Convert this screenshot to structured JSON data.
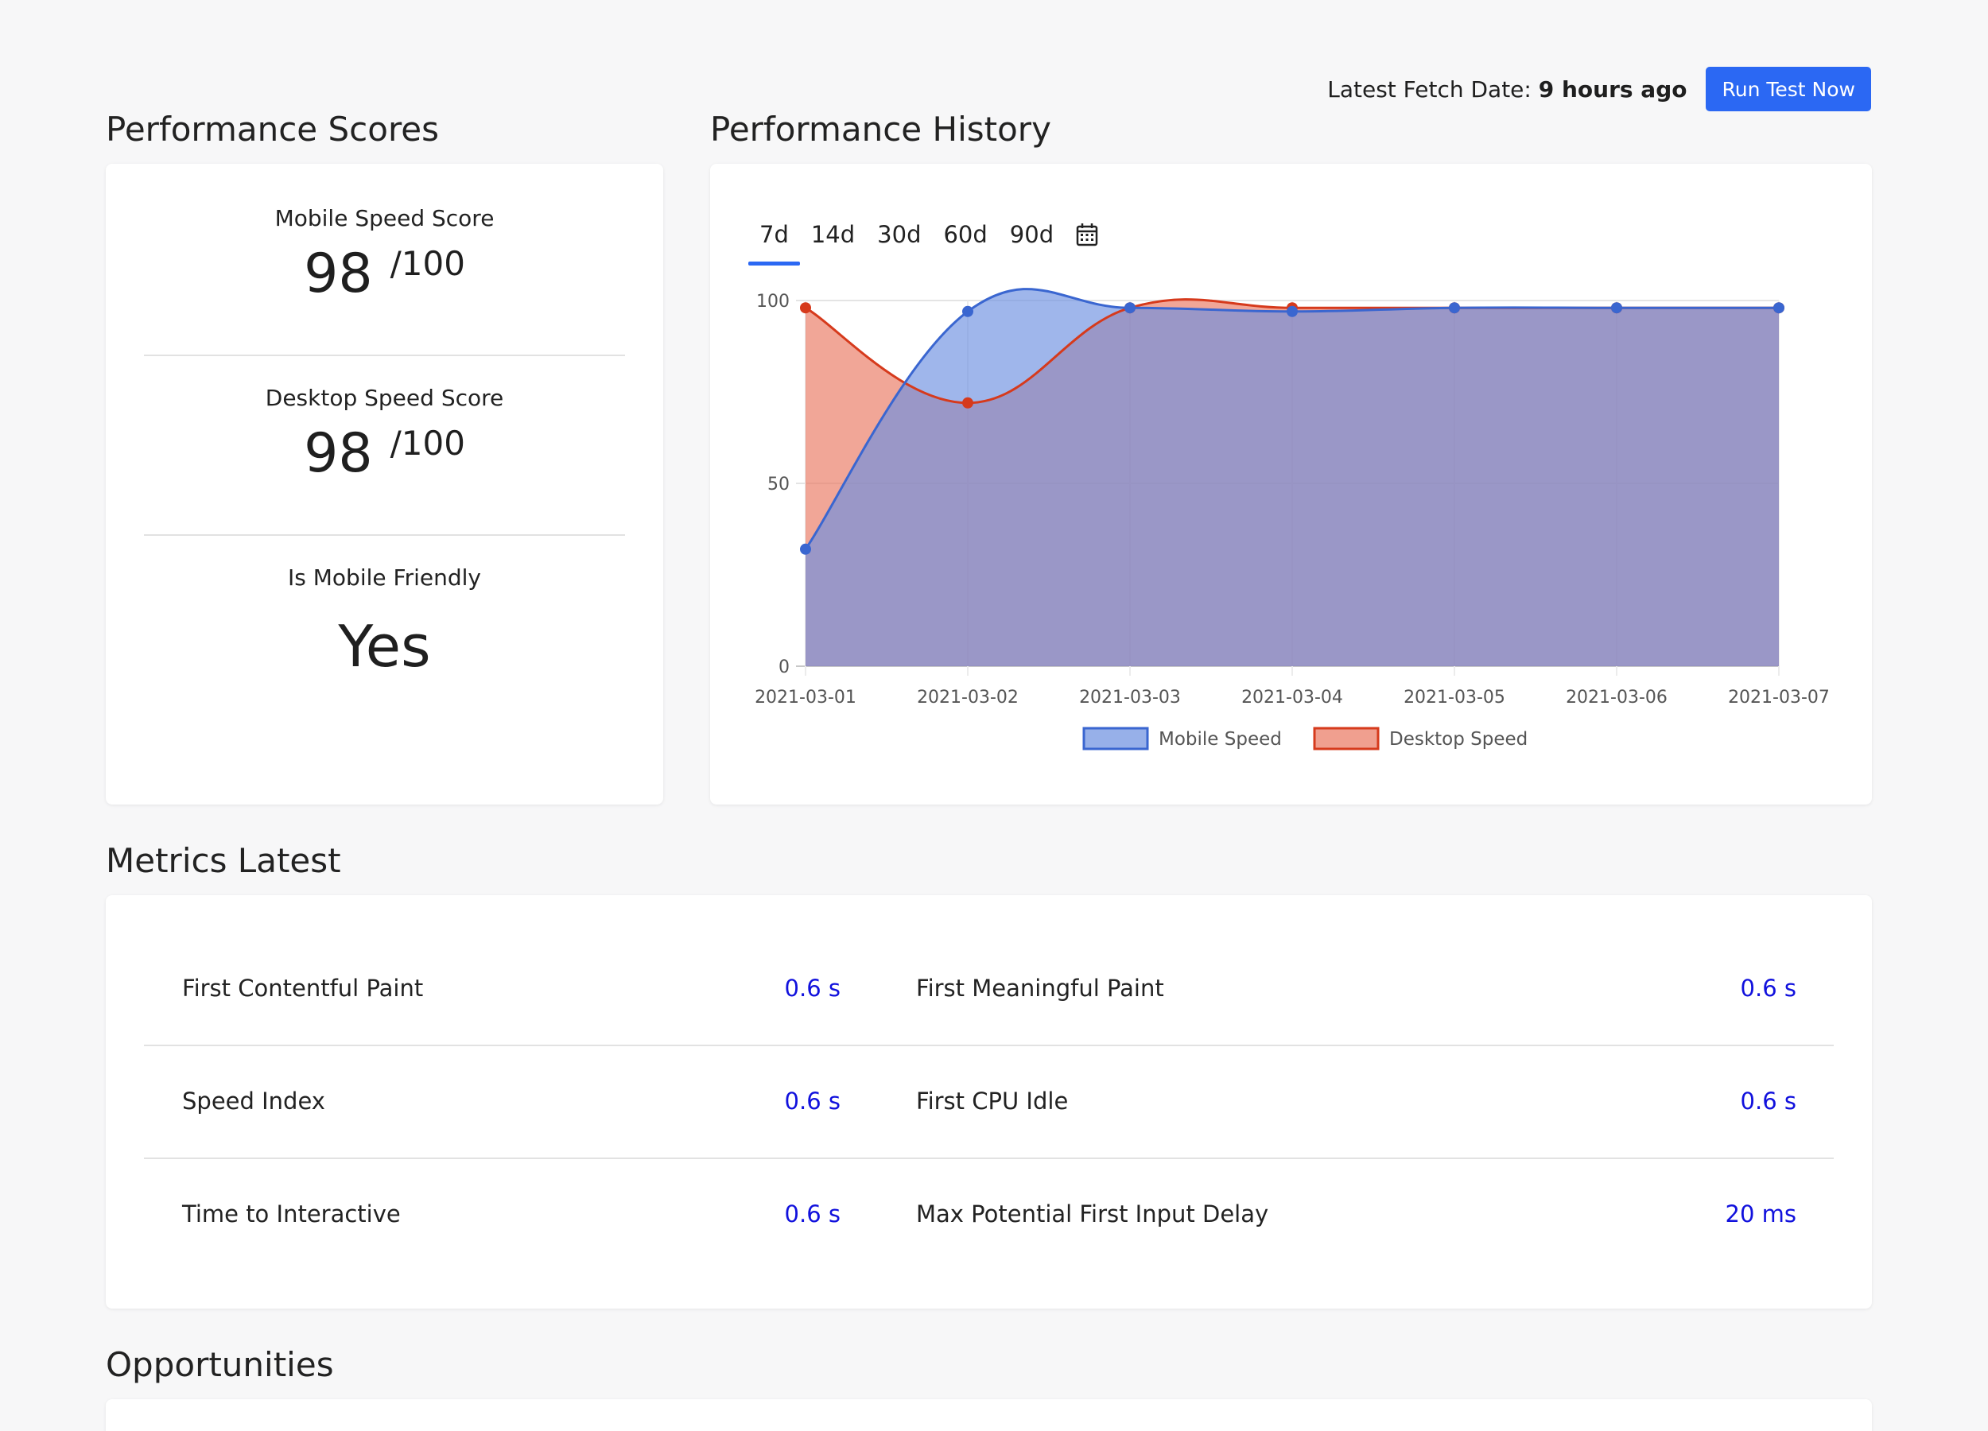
{
  "header": {
    "fetch_label": "Latest Fetch Date:",
    "fetch_value": "9 hours ago",
    "run_button": "Run Test Now"
  },
  "scores": {
    "title": "Performance Scores",
    "mobile": {
      "label": "Mobile Speed Score",
      "value": "98",
      "max": "/100"
    },
    "desktop": {
      "label": "Desktop Speed Score",
      "value": "98",
      "max": "/100"
    },
    "friendly": {
      "label": "Is Mobile Friendly",
      "value": "Yes"
    }
  },
  "history": {
    "title": "Performance History",
    "tabs": [
      "7d",
      "14d",
      "30d",
      "60d",
      "90d"
    ],
    "active_tab": "7d"
  },
  "chart_data": {
    "type": "area",
    "x": [
      "2021-03-01",
      "2021-03-02",
      "2021-03-03",
      "2021-03-04",
      "2021-03-05",
      "2021-03-06",
      "2021-03-07"
    ],
    "series": [
      {
        "name": "Mobile Speed",
        "values": [
          32,
          97,
          98,
          97,
          98,
          98,
          98
        ],
        "color": "#3a66d0",
        "fill": "#6b8fe0"
      },
      {
        "name": "Desktop Speed",
        "values": [
          98,
          72,
          98,
          98,
          98,
          98,
          98
        ],
        "color": "#d63a1c",
        "fill": "#e9765f"
      }
    ],
    "y_ticks": [
      "0",
      "50",
      "100"
    ],
    "ylim": [
      0,
      100
    ],
    "legend": "bottom-center",
    "grid": true
  },
  "metrics": {
    "title": "Metrics Latest",
    "rows": [
      [
        {
          "label": "First Contentful Paint",
          "value": "0.6 s"
        },
        {
          "label": "First Meaningful Paint",
          "value": "0.6 s"
        }
      ],
      [
        {
          "label": "Speed Index",
          "value": "0.6 s"
        },
        {
          "label": "First CPU Idle",
          "value": "0.6 s"
        }
      ],
      [
        {
          "label": "Time to Interactive",
          "value": "0.6 s"
        },
        {
          "label": "Max Potential First Input Delay",
          "value": "20 ms"
        }
      ]
    ]
  },
  "opportunities": {
    "title": "Opportunities"
  },
  "colors": {
    "accent": "#2b68f3",
    "metric_value": "#1111dd"
  }
}
